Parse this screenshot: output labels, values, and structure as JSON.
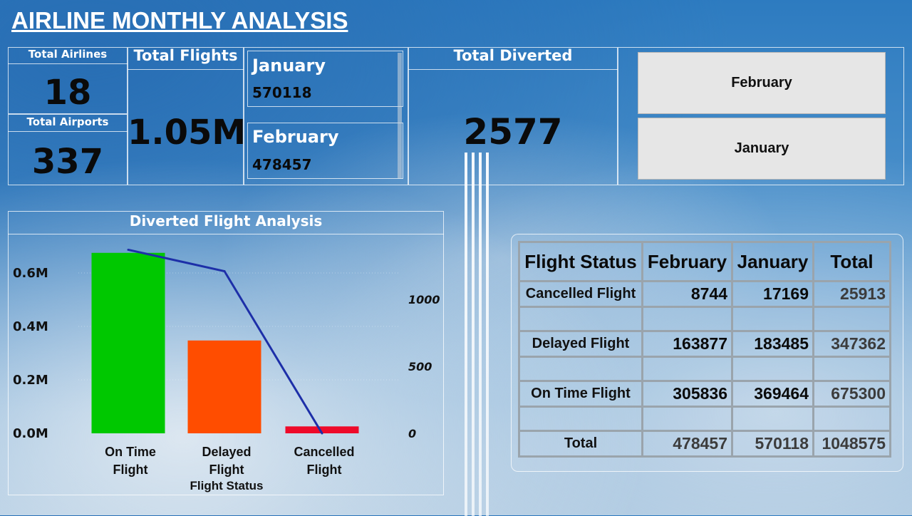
{
  "title": "AIRLINE MONTHLY ANALYSIS",
  "kpis": {
    "airlines_label": "Total Airlines",
    "airlines_value": "18",
    "airports_label": "Total Airports",
    "airports_value": "337",
    "flights_label": "Total Flights",
    "flights_value": "1.05M",
    "diverted_label": "Total Diverted",
    "diverted_value": "2577"
  },
  "months": [
    {
      "name": "January",
      "value": "570118"
    },
    {
      "name": "February",
      "value": "478457"
    }
  ],
  "slicer": {
    "items": [
      "February",
      "January"
    ]
  },
  "chart_data": {
    "type": "bar",
    "title": "Diverted Flight Analysis",
    "xlabel": "Flight Status",
    "ylabel": "",
    "categories": [
      [
        "On Time",
        "Flight"
      ],
      [
        "Delayed",
        "Flight"
      ],
      [
        "Cancelled",
        "Flight"
      ]
    ],
    "series": [
      {
        "type": "bar",
        "values": [
          675300,
          347362,
          25913
        ],
        "colors": [
          "#00c800",
          "#ff4d00",
          "#ee0a2a"
        ],
        "axis": "left"
      },
      {
        "type": "line",
        "values": [
          1370,
          1210,
          0
        ],
        "color": "#1d2fa8",
        "axis": "right"
      }
    ],
    "y_left": {
      "ticks": [
        "0.0M",
        "0.2M",
        "0.4M",
        "0.6M"
      ],
      "tick_values": [
        0,
        200000,
        400000,
        600000
      ],
      "range": [
        0,
        700000
      ]
    },
    "y_right": {
      "ticks": [
        "0",
        "500",
        "1000"
      ],
      "tick_values": [
        0,
        500,
        1000
      ],
      "range": [
        0,
        1000
      ]
    },
    "grid": false
  },
  "matrix": {
    "headers": [
      "Flight Status",
      "February",
      "January",
      "Total"
    ],
    "rows": [
      {
        "label": "Cancelled Flight",
        "feb": "8744",
        "jan": "17169",
        "total": "25913"
      },
      {
        "label": "Delayed Flight",
        "feb": "163877",
        "jan": "183485",
        "total": "347362"
      },
      {
        "label": "On Time Flight",
        "feb": "305836",
        "jan": "369464",
        "total": "675300"
      }
    ],
    "total": {
      "label": "Total",
      "feb": "478457",
      "jan": "570118",
      "total": "1048575"
    }
  }
}
